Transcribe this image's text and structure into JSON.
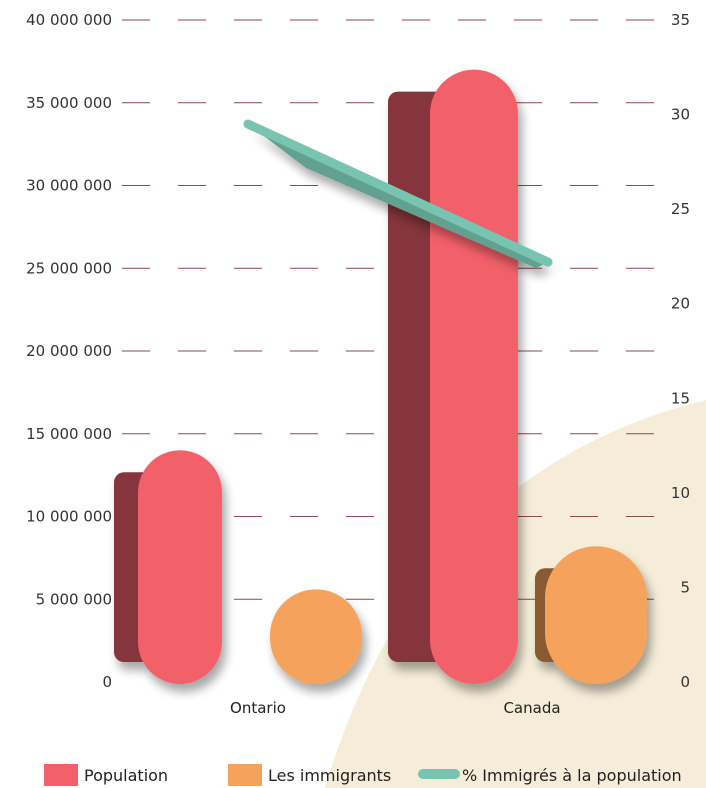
{
  "chart_data": {
    "type": "bar",
    "categories": [
      "Ontario",
      "Canada"
    ],
    "series": [
      {
        "name": "Population",
        "kind": "bar",
        "axis": "left",
        "color": "#f2606a",
        "values": [
          14000000,
          37000000
        ]
      },
      {
        "name": "Les immigrants",
        "kind": "bar",
        "axis": "left",
        "color": "#f5a35b",
        "values": [
          5600000,
          8200000
        ]
      },
      {
        "name": "% Immigrés à la population",
        "kind": "line",
        "axis": "right",
        "color": "#78c4b0",
        "values": [
          29.5,
          22.2
        ]
      }
    ],
    "y_left": {
      "min": 0,
      "max": 40000000,
      "ticks": [
        0,
        5000000,
        10000000,
        15000000,
        20000000,
        25000000,
        30000000,
        35000000,
        40000000
      ],
      "tick_labels": [
        "0",
        "5 000 000",
        "10 000 000",
        "15 000 000",
        "20 000 000",
        "25 000 000",
        "30 000 000",
        "35 000 000",
        "40 000 000"
      ]
    },
    "y_right": {
      "min": 0,
      "max": 35,
      "ticks": [
        0,
        5,
        10,
        15,
        20,
        25,
        30,
        35
      ],
      "tick_labels": [
        "0",
        "5",
        "10",
        "15",
        "20",
        "25",
        "30",
        "35"
      ]
    },
    "grid": true,
    "legend_position": "bottom",
    "title": "",
    "xlabel": "",
    "ylabel": ""
  },
  "colors": {
    "grid": "#8a4a52",
    "background_shape": "#f5edd8"
  }
}
